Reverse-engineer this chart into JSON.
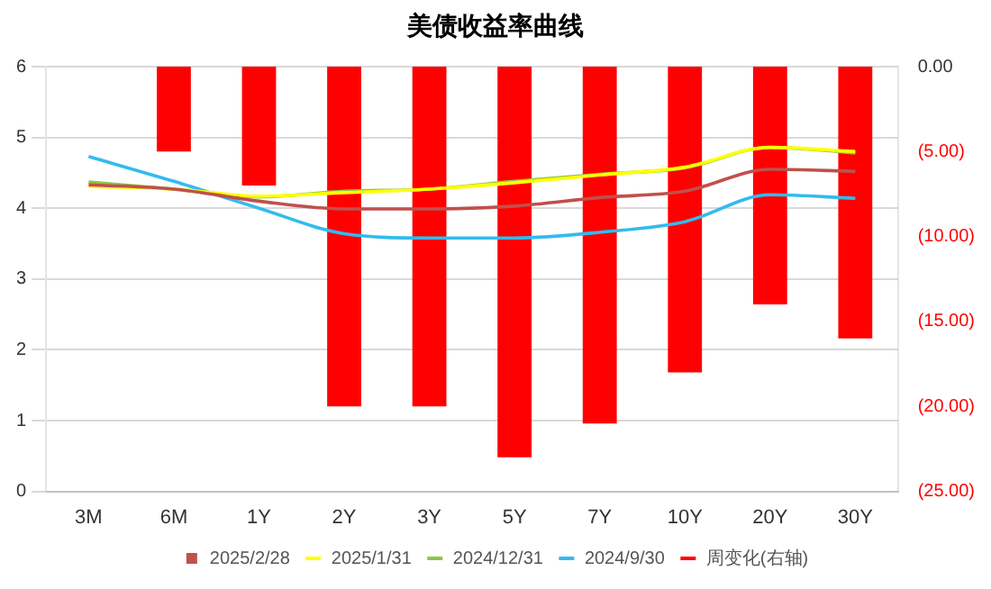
{
  "chart_data": {
    "type": "line",
    "title": "美债收益率曲线",
    "categories": [
      "3M",
      "6M",
      "1Y",
      "2Y",
      "3Y",
      "5Y",
      "7Y",
      "10Y",
      "20Y",
      "30Y"
    ],
    "series": [
      {
        "name": "周变化(右轴)",
        "type": "bar",
        "axis": "y2",
        "color": "#ff0000",
        "values": [
          0,
          -5,
          -7,
          -20,
          -20,
          -23,
          -21,
          -18,
          -14,
          -16
        ]
      },
      {
        "name": "2025/2/28",
        "color": "#c0504d",
        "values": [
          4.33,
          4.27,
          4.1,
          3.99,
          3.99,
          4.03,
          4.15,
          4.24,
          4.55,
          4.52
        ]
      },
      {
        "name": "2025/1/31",
        "color": "#ffff00",
        "values": [
          4.31,
          4.27,
          4.17,
          4.22,
          4.27,
          4.36,
          4.47,
          4.58,
          4.86,
          4.8
        ]
      },
      {
        "name": "2024/12/31",
        "color": "#8dc63f",
        "values": [
          4.37,
          4.27,
          4.16,
          4.24,
          4.27,
          4.38,
          4.48,
          4.57,
          4.86,
          4.78
        ]
      },
      {
        "name": "2024/9/30",
        "color": "#33bbee",
        "values": [
          4.73,
          4.38,
          4.0,
          3.64,
          3.58,
          3.58,
          3.66,
          3.81,
          4.19,
          4.14
        ]
      }
    ],
    "ylim": [
      0,
      6
    ],
    "yticks": [
      0,
      1,
      2,
      3,
      4,
      5,
      6
    ],
    "y2lim": [
      -25,
      0
    ],
    "y2ticks": [
      {
        "value": 0,
        "label": "0.00"
      },
      {
        "value": -5,
        "label": "(5.00)"
      },
      {
        "value": -10,
        "label": "(10.00)"
      },
      {
        "value": -15,
        "label": "(15.00)"
      },
      {
        "value": -20,
        "label": "(20.00)"
      },
      {
        "value": -25,
        "label": "(25.00)"
      }
    ],
    "grid": "y",
    "legend": "bottom",
    "marker": "none",
    "line_style": "solid"
  }
}
